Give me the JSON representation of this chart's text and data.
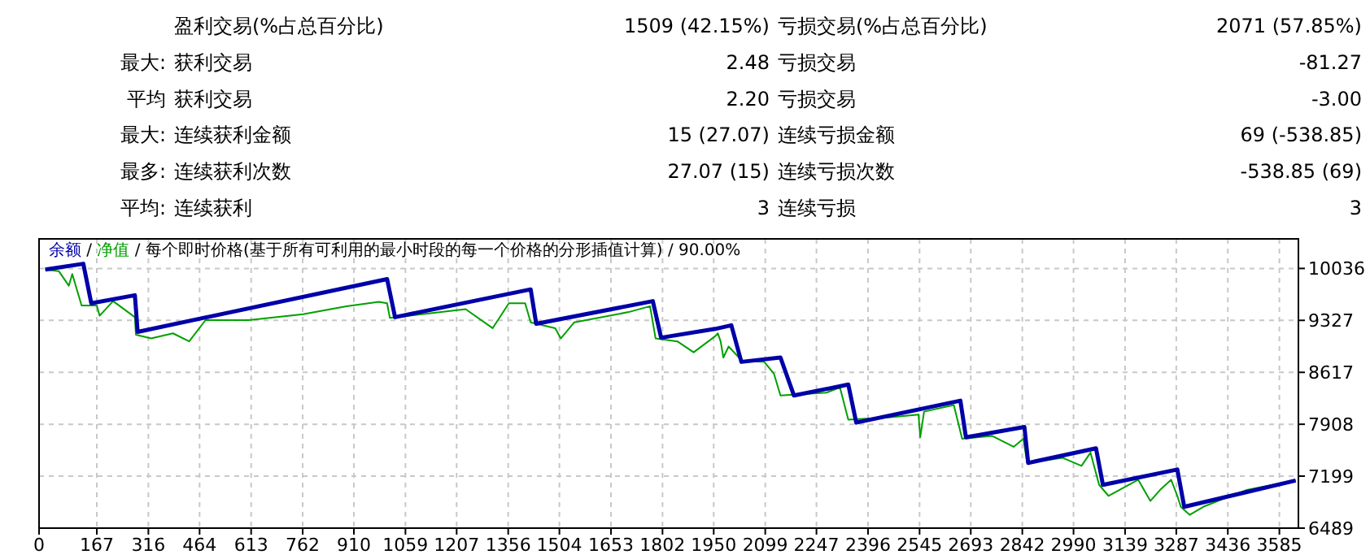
{
  "chart_data": [
    {
      "type": "other",
      "annotations": [
        "盈利交易(%占总百分比)",
        "1509 (42.15%)",
        "亏损交易(%占总百分比)",
        "2071 (57.85%)",
        "最大:",
        "获利交易",
        "2.48",
        "亏损交易",
        "-81.27",
        "平均",
        "获利交易",
        "2.20",
        "亏损交易",
        "-3.00",
        "最大:",
        "连续获利金额",
        "15 (27.07)",
        "连续亏损金额",
        "69 (-538.85)",
        "最多:",
        "连续获利次数",
        "27.07 (15)",
        "连续亏损次数",
        "-538.85 (69)",
        "平均:",
        "连续获利",
        "3",
        "连续亏损",
        "3"
      ]
    },
    {
      "type": "line",
      "annotations": [
        "/"
      ],
      "title": "/ 每个即时价格(基于所有可利用的最小时段的每一个价格的分形插值计算) / 90.00%",
      "legend": "top left",
      "grid": true,
      "xlim": [
        0,
        3640
      ],
      "xticks": [
        0,
        167,
        316,
        464,
        613,
        762,
        910,
        1059,
        1207,
        1356,
        1504,
        1653,
        1802,
        1950,
        2099,
        2247,
        2396,
        2545,
        2693,
        2842,
        2990,
        3139,
        3287,
        3436,
        3585
      ],
      "ylim": [
        6489,
        10440
      ],
      "yticks": [
        6489,
        7199,
        7908,
        8617,
        9327,
        10036
      ],
      "series": [
        {
          "name": "余额",
          "color": "#0000a8",
          "x": [
            18,
            128,
            151,
            277,
            285,
            1006,
            1029,
            1421,
            1437,
            1774,
            1798,
            1954,
            2001,
            2030,
            2143,
            2182,
            2339,
            2362,
            2663,
            2679,
            2848,
            2859,
            3055,
            3075,
            3290,
            3310,
            3632
          ],
          "values": [
            10020,
            10100,
            9560,
            9670,
            9170,
            9890,
            9370,
            9750,
            9280,
            9590,
            9090,
            9210,
            9260,
            8760,
            8820,
            8300,
            8450,
            7930,
            8230,
            7730,
            7870,
            7380,
            7580,
            7080,
            7290,
            6780,
            7140
          ]
        },
        {
          "name": "净值",
          "color": "#00a000",
          "x": [
            18,
            57,
            86,
            96,
            123,
            167,
            175,
            214,
            277,
            280,
            324,
            387,
            434,
            481,
            606,
            763,
            888,
            982,
            1006,
            1014,
            1233,
            1311,
            1358,
            1405,
            1421,
            1492,
            1508,
            1547,
            1704,
            1766,
            1782,
            1845,
            1892,
            1954,
            1962,
            1970,
            1978,
            1993,
            2033,
            2096,
            2124,
            2143,
            2276,
            2315,
            2339,
            2456,
            2542,
            2547,
            2558,
            2644,
            2668,
            2754,
            2817,
            2845,
            2856,
            2958,
            3013,
            3039,
            3064,
            3091,
            3177,
            3212,
            3240,
            3272,
            3290,
            3300,
            3326,
            3365,
            3428,
            3491,
            3632
          ],
          "values": [
            10020,
            10000,
            9800,
            9960,
            9530,
            9530,
            9390,
            9590,
            9370,
            9130,
            9080,
            9150,
            9040,
            9330,
            9330,
            9410,
            9520,
            9580,
            9560,
            9360,
            9480,
            9220,
            9560,
            9560,
            9300,
            9220,
            9080,
            9300,
            9440,
            9520,
            9080,
            9040,
            8890,
            9110,
            9150,
            9040,
            8820,
            8970,
            8770,
            8760,
            8600,
            8300,
            8340,
            8410,
            7970,
            8000,
            8040,
            7730,
            8080,
            8170,
            7710,
            7750,
            7600,
            7710,
            7380,
            7450,
            7340,
            7520,
            7080,
            6930,
            7150,
            6860,
            7010,
            7150,
            6930,
            6780,
            6670,
            6780,
            6900,
            7010,
            7140
          ]
        }
      ]
    }
  ]
}
